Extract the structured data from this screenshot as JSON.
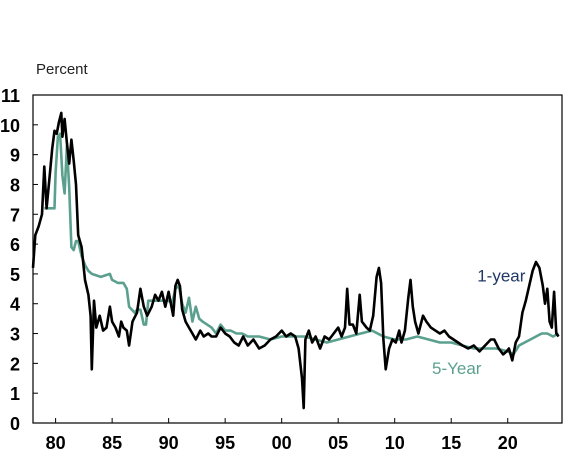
{
  "chart_data": {
    "type": "line",
    "title": "",
    "ylabel": "Percent",
    "xlabel": "",
    "xlim": [
      1978,
      2024.8
    ],
    "ylim": [
      0,
      11
    ],
    "yticks": [
      0,
      1,
      2,
      3,
      4,
      5,
      6,
      7,
      8,
      9,
      10,
      11
    ],
    "ytick_labels": [
      "0",
      "1",
      "2",
      "3",
      "4",
      "5",
      "6",
      "7",
      "8",
      "9",
      "10",
      "11"
    ],
    "xticks": [
      1980,
      1985,
      1990,
      1995,
      2000,
      2005,
      2010,
      2015,
      2020
    ],
    "xtick_labels": [
      "80",
      "85",
      "90",
      "95",
      "00",
      "05",
      "10",
      "15",
      "20"
    ],
    "grid": false,
    "legend": "none",
    "series": [
      {
        "name": "1-year",
        "color": "#000000",
        "label_color": "#1f3864",
        "points": [
          [
            1978.0,
            5.2
          ],
          [
            1978.2,
            6.3
          ],
          [
            1978.5,
            6.6
          ],
          [
            1978.8,
            7.0
          ],
          [
            1979.0,
            8.6
          ],
          [
            1979.2,
            7.2
          ],
          [
            1979.5,
            8.4
          ],
          [
            1979.7,
            9.2
          ],
          [
            1979.9,
            9.8
          ],
          [
            1980.1,
            9.7
          ],
          [
            1980.3,
            10.1
          ],
          [
            1980.5,
            10.4
          ],
          [
            1980.6,
            9.6
          ],
          [
            1980.8,
            10.2
          ],
          [
            1981.0,
            9.4
          ],
          [
            1981.2,
            8.7
          ],
          [
            1981.4,
            9.5
          ],
          [
            1981.6,
            8.8
          ],
          [
            1981.8,
            8.0
          ],
          [
            1982.0,
            6.3
          ],
          [
            1982.3,
            5.9
          ],
          [
            1982.6,
            4.8
          ],
          [
            1982.9,
            4.3
          ],
          [
            1983.1,
            3.6
          ],
          [
            1983.2,
            1.8
          ],
          [
            1983.4,
            4.1
          ],
          [
            1983.6,
            3.2
          ],
          [
            1983.9,
            3.6
          ],
          [
            1984.2,
            3.1
          ],
          [
            1984.5,
            3.2
          ],
          [
            1984.8,
            3.9
          ],
          [
            1985.0,
            3.4
          ],
          [
            1985.3,
            3.2
          ],
          [
            1985.6,
            2.9
          ],
          [
            1985.8,
            3.4
          ],
          [
            1986.0,
            3.2
          ],
          [
            1986.3,
            3.1
          ],
          [
            1986.5,
            2.6
          ],
          [
            1986.8,
            3.4
          ],
          [
            1987.2,
            3.7
          ],
          [
            1987.5,
            4.5
          ],
          [
            1987.8,
            3.9
          ],
          [
            1988.1,
            3.6
          ],
          [
            1988.5,
            3.9
          ],
          [
            1988.8,
            4.3
          ],
          [
            1989.1,
            4.1
          ],
          [
            1989.4,
            4.4
          ],
          [
            1989.7,
            3.9
          ],
          [
            1990.0,
            4.4
          ],
          [
            1990.2,
            4.0
          ],
          [
            1990.4,
            3.6
          ],
          [
            1990.6,
            4.6
          ],
          [
            1990.8,
            4.8
          ],
          [
            1991.0,
            4.6
          ],
          [
            1991.2,
            3.8
          ],
          [
            1991.5,
            3.4
          ],
          [
            1991.8,
            3.2
          ],
          [
            1992.1,
            3.0
          ],
          [
            1992.4,
            2.8
          ],
          [
            1992.8,
            3.1
          ],
          [
            1993.1,
            2.9
          ],
          [
            1993.5,
            3.0
          ],
          [
            1993.8,
            2.9
          ],
          [
            1994.2,
            2.9
          ],
          [
            1994.6,
            3.2
          ],
          [
            1995.0,
            3.0
          ],
          [
            1995.4,
            2.9
          ],
          [
            1995.8,
            2.7
          ],
          [
            1996.2,
            2.6
          ],
          [
            1996.6,
            2.9
          ],
          [
            1997.0,
            2.6
          ],
          [
            1997.5,
            2.8
          ],
          [
            1998.0,
            2.5
          ],
          [
            1998.5,
            2.6
          ],
          [
            1999.0,
            2.8
          ],
          [
            1999.5,
            2.9
          ],
          [
            2000.0,
            3.1
          ],
          [
            2000.4,
            2.9
          ],
          [
            2000.8,
            3.0
          ],
          [
            2001.2,
            2.9
          ],
          [
            2001.5,
            2.5
          ],
          [
            2001.8,
            1.5
          ],
          [
            2001.95,
            0.5
          ],
          [
            2002.1,
            2.8
          ],
          [
            2002.4,
            3.1
          ],
          [
            2002.7,
            2.7
          ],
          [
            2003.0,
            2.9
          ],
          [
            2003.4,
            2.5
          ],
          [
            2003.8,
            2.9
          ],
          [
            2004.2,
            2.8
          ],
          [
            2004.6,
            3.0
          ],
          [
            2005.0,
            3.2
          ],
          [
            2005.3,
            2.9
          ],
          [
            2005.6,
            3.2
          ],
          [
            2005.8,
            4.5
          ],
          [
            2006.0,
            3.3
          ],
          [
            2006.3,
            3.3
          ],
          [
            2006.6,
            3.0
          ],
          [
            2006.9,
            4.3
          ],
          [
            2007.1,
            3.4
          ],
          [
            2007.5,
            3.2
          ],
          [
            2007.8,
            3.1
          ],
          [
            2008.1,
            3.6
          ],
          [
            2008.4,
            4.9
          ],
          [
            2008.6,
            5.2
          ],
          [
            2008.8,
            4.7
          ],
          [
            2009.0,
            2.8
          ],
          [
            2009.2,
            1.8
          ],
          [
            2009.5,
            2.5
          ],
          [
            2009.8,
            2.8
          ],
          [
            2010.1,
            2.7
          ],
          [
            2010.4,
            3.1
          ],
          [
            2010.6,
            2.7
          ],
          [
            2010.9,
            3.1
          ],
          [
            2011.2,
            4.2
          ],
          [
            2011.4,
            4.8
          ],
          [
            2011.6,
            3.9
          ],
          [
            2011.8,
            3.4
          ],
          [
            2012.1,
            3.0
          ],
          [
            2012.5,
            3.6
          ],
          [
            2012.8,
            3.4
          ],
          [
            2013.2,
            3.2
          ],
          [
            2013.6,
            3.1
          ],
          [
            2014.0,
            3.0
          ],
          [
            2014.4,
            3.1
          ],
          [
            2014.8,
            2.9
          ],
          [
            2015.2,
            2.8
          ],
          [
            2015.6,
            2.7
          ],
          [
            2016.0,
            2.6
          ],
          [
            2016.5,
            2.5
          ],
          [
            2017.0,
            2.6
          ],
          [
            2017.5,
            2.4
          ],
          [
            2018.0,
            2.6
          ],
          [
            2018.5,
            2.8
          ],
          [
            2018.8,
            2.8
          ],
          [
            2019.2,
            2.5
          ],
          [
            2019.6,
            2.3
          ],
          [
            2019.9,
            2.4
          ],
          [
            2020.1,
            2.5
          ],
          [
            2020.4,
            2.1
          ],
          [
            2020.7,
            2.7
          ],
          [
            2021.0,
            2.9
          ],
          [
            2021.3,
            3.7
          ],
          [
            2021.6,
            4.1
          ],
          [
            2021.9,
            4.6
          ],
          [
            2022.2,
            5.1
          ],
          [
            2022.5,
            5.4
          ],
          [
            2022.8,
            5.2
          ],
          [
            2023.1,
            4.6
          ],
          [
            2023.3,
            4.0
          ],
          [
            2023.5,
            4.5
          ],
          [
            2023.7,
            3.4
          ],
          [
            2023.9,
            3.2
          ],
          [
            2024.1,
            4.4
          ],
          [
            2024.3,
            3.0
          ],
          [
            2024.5,
            2.9
          ]
        ]
      },
      {
        "name": "5-Year",
        "color": "#5ba08e",
        "label_color": "#5ba08e",
        "points": [
          [
            1979.0,
            7.2
          ],
          [
            1979.5,
            7.2
          ],
          [
            1979.9,
            7.2
          ],
          [
            1980.0,
            8.4
          ],
          [
            1980.2,
            9.6
          ],
          [
            1980.4,
            9.7
          ],
          [
            1980.6,
            8.3
          ],
          [
            1980.8,
            7.7
          ],
          [
            1981.0,
            9.3
          ],
          [
            1981.2,
            7.9
          ],
          [
            1981.4,
            5.9
          ],
          [
            1981.6,
            5.8
          ],
          [
            1981.8,
            6.1
          ],
          [
            1982.0,
            6.1
          ],
          [
            1982.3,
            5.6
          ],
          [
            1982.6,
            5.3
          ],
          [
            1982.9,
            5.1
          ],
          [
            1983.2,
            5.0
          ],
          [
            1984.0,
            4.9
          ],
          [
            1984.8,
            5.0
          ],
          [
            1985.0,
            4.8
          ],
          [
            1985.5,
            4.7
          ],
          [
            1986.0,
            4.7
          ],
          [
            1986.3,
            4.5
          ],
          [
            1986.5,
            3.9
          ],
          [
            1987.0,
            3.7
          ],
          [
            1987.2,
            3.8
          ],
          [
            1987.5,
            3.8
          ],
          [
            1987.8,
            3.3
          ],
          [
            1988.0,
            3.3
          ],
          [
            1988.2,
            4.1
          ],
          [
            1989.0,
            4.1
          ],
          [
            1990.0,
            4.1
          ],
          [
            1990.3,
            4.0
          ],
          [
            1990.6,
            4.5
          ],
          [
            1990.9,
            4.6
          ],
          [
            1991.2,
            4.0
          ],
          [
            1991.5,
            3.7
          ],
          [
            1991.8,
            4.2
          ],
          [
            1992.1,
            3.4
          ],
          [
            1992.4,
            3.9
          ],
          [
            1992.7,
            3.5
          ],
          [
            1993.0,
            3.4
          ],
          [
            1993.4,
            3.3
          ],
          [
            1993.8,
            3.2
          ],
          [
            1994.2,
            3.0
          ],
          [
            1994.6,
            3.3
          ],
          [
            1995.0,
            3.1
          ],
          [
            1995.5,
            3.1
          ],
          [
            1996.0,
            3.0
          ],
          [
            1996.5,
            3.0
          ],
          [
            1997.0,
            2.9
          ],
          [
            1998.0,
            2.9
          ],
          [
            1999.0,
            2.8
          ],
          [
            2000.0,
            2.9
          ],
          [
            2001.0,
            2.9
          ],
          [
            2002.0,
            2.9
          ],
          [
            2003.0,
            2.8
          ],
          [
            2004.0,
            2.7
          ],
          [
            2005.0,
            2.8
          ],
          [
            2006.0,
            2.9
          ],
          [
            2007.0,
            3.0
          ],
          [
            2008.0,
            3.1
          ],
          [
            2009.0,
            2.9
          ],
          [
            2010.0,
            2.8
          ],
          [
            2011.0,
            2.8
          ],
          [
            2012.0,
            2.9
          ],
          [
            2013.0,
            2.8
          ],
          [
            2014.0,
            2.7
          ],
          [
            2015.0,
            2.7
          ],
          [
            2016.0,
            2.6
          ],
          [
            2017.0,
            2.5
          ],
          [
            2018.0,
            2.5
          ],
          [
            2019.0,
            2.5
          ],
          [
            2020.0,
            2.4
          ],
          [
            2020.5,
            2.3
          ],
          [
            2021.0,
            2.6
          ],
          [
            2021.5,
            2.7
          ],
          [
            2022.0,
            2.8
          ],
          [
            2022.5,
            2.9
          ],
          [
            2023.0,
            3.0
          ],
          [
            2023.5,
            3.0
          ],
          [
            2024.0,
            2.9
          ],
          [
            2024.5,
            3.0
          ]
        ]
      }
    ]
  }
}
